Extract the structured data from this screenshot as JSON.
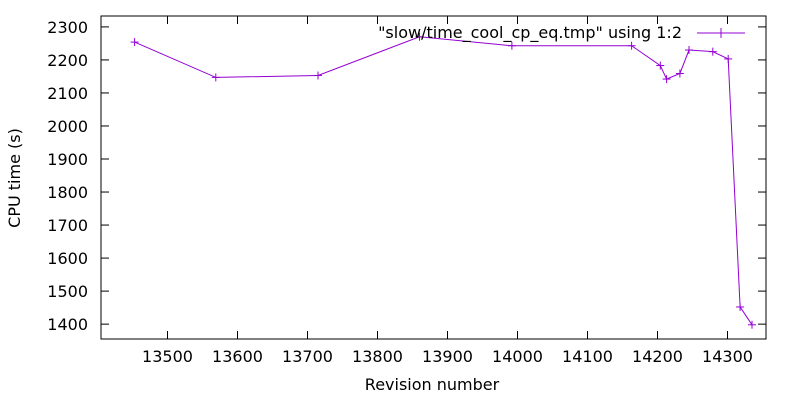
{
  "chart_data": {
    "type": "line",
    "title": "",
    "xlabel": "Revision number",
    "ylabel": "CPU time (s)",
    "xlim": [
      13405,
      14355
    ],
    "ylim": [
      1355,
      2333
    ],
    "xticks": [
      13500,
      13600,
      13700,
      13800,
      13900,
      14000,
      14100,
      14200,
      14300
    ],
    "yticks": [
      1400,
      1500,
      1600,
      1700,
      1800,
      1900,
      2000,
      2100,
      2200,
      2300
    ],
    "grid": false,
    "legend": {
      "position": "top-right",
      "visible": true
    },
    "series": [
      {
        "name": "\"slow/time_cool_cp_eq.tmp\" using 1:2",
        "color": "#9400d3",
        "marker": "plus",
        "points": [
          {
            "x": 13453,
            "y": 2254
          },
          {
            "x": 13569,
            "y": 2147
          },
          {
            "x": 13715,
            "y": 2153
          },
          {
            "x": 13860,
            "y": 2270
          },
          {
            "x": 13992,
            "y": 2243
          },
          {
            "x": 14163,
            "y": 2243
          },
          {
            "x": 14204,
            "y": 2183
          },
          {
            "x": 14213,
            "y": 2142
          },
          {
            "x": 14232,
            "y": 2159
          },
          {
            "x": 14245,
            "y": 2230
          },
          {
            "x": 14279,
            "y": 2225
          },
          {
            "x": 14301,
            "y": 2203
          },
          {
            "x": 14318,
            "y": 1452
          },
          {
            "x": 14335,
            "y": 1398
          }
        ]
      }
    ]
  }
}
